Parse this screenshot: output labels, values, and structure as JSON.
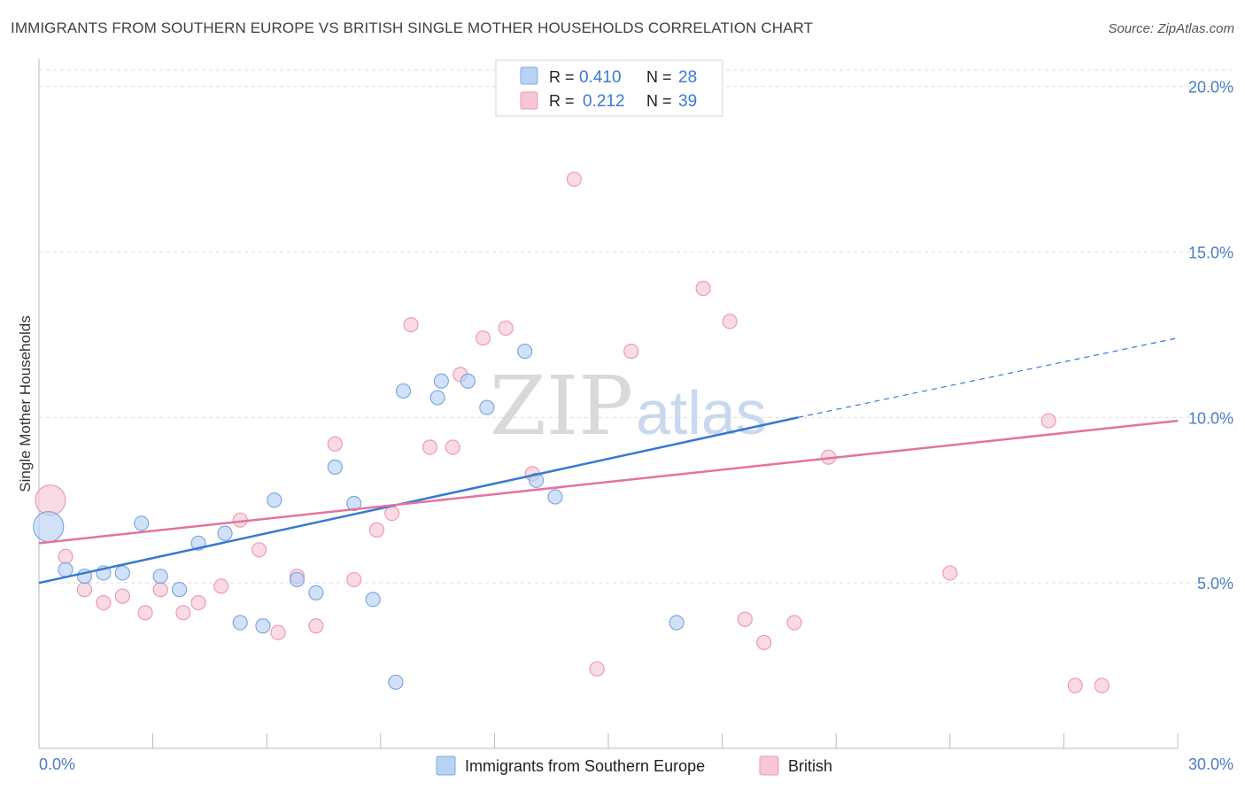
{
  "header": {
    "title": "IMMIGRANTS FROM SOUTHERN EUROPE VS BRITISH SINGLE MOTHER HOUSEHOLDS CORRELATION CHART",
    "source": "Source: ZipAtlas.com"
  },
  "watermark": {
    "part1": "ZIP",
    "part2": "atlas"
  },
  "colors": {
    "blue_fill": "#b8d3f4",
    "blue_stroke": "#7fa8de",
    "blue_line": "#3679d4",
    "pink_fill": "#f8c6d4",
    "pink_stroke": "#ec9bb4",
    "pink_line": "#e4739b",
    "tick_label": "#4a7cc7",
    "grid": "#dddddd"
  },
  "legend_top": {
    "rows": [
      {
        "r_label": "R =",
        "r_value": "0.410",
        "n_label": "N =",
        "n_value": "28"
      },
      {
        "r_label": "R =",
        "r_value": "0.212",
        "n_label": "N =",
        "n_value": "39"
      }
    ]
  },
  "chart_data": {
    "type": "scatter",
    "title": "IMMIGRANTS FROM SOUTHERN EUROPE VS BRITISH SINGLE MOTHER HOUSEHOLDS CORRELATION CHART",
    "xlabel": "",
    "ylabel": "Single Mother Households",
    "xlim": [
      0,
      30
    ],
    "ylim": [
      0,
      20.5
    ],
    "x_tick_labels": [
      "0.0%",
      "30.0%"
    ],
    "y_ticks": [
      5,
      10,
      15,
      20
    ],
    "y_tick_labels": [
      "5.0%",
      "10.0%",
      "15.0%",
      "20.0%"
    ],
    "grid": true,
    "legend_position": "bottom",
    "series": [
      {
        "name": "Immigrants from Southern Europe",
        "color": "blue",
        "r": 0.41,
        "n": 28,
        "trend": {
          "x0": 0,
          "y0": 5.0,
          "x1": 20,
          "y1": 10.0,
          "dash_to_x": 30,
          "dash_to_y": 12.4
        },
        "points": [
          {
            "x": 0.25,
            "y": 6.7,
            "big": true
          },
          {
            "x": 0.7,
            "y": 5.4
          },
          {
            "x": 1.2,
            "y": 5.2
          },
          {
            "x": 1.7,
            "y": 5.3
          },
          {
            "x": 2.2,
            "y": 5.3
          },
          {
            "x": 2.7,
            "y": 6.8
          },
          {
            "x": 3.2,
            "y": 5.2
          },
          {
            "x": 3.7,
            "y": 4.8
          },
          {
            "x": 4.2,
            "y": 6.2
          },
          {
            "x": 4.9,
            "y": 6.5
          },
          {
            "x": 5.3,
            "y": 3.8
          },
          {
            "x": 5.9,
            "y": 3.7
          },
          {
            "x": 6.2,
            "y": 7.5
          },
          {
            "x": 6.8,
            "y": 5.1
          },
          {
            "x": 7.3,
            "y": 4.7
          },
          {
            "x": 7.8,
            "y": 8.5
          },
          {
            "x": 8.3,
            "y": 7.4
          },
          {
            "x": 8.8,
            "y": 4.5
          },
          {
            "x": 9.4,
            "y": 2.0
          },
          {
            "x": 9.6,
            "y": 10.8
          },
          {
            "x": 10.5,
            "y": 10.6
          },
          {
            "x": 10.6,
            "y": 11.1
          },
          {
            "x": 11.3,
            "y": 11.1
          },
          {
            "x": 11.8,
            "y": 10.3
          },
          {
            "x": 12.8,
            "y": 12.0
          },
          {
            "x": 13.1,
            "y": 8.1
          },
          {
            "x": 13.6,
            "y": 7.6
          },
          {
            "x": 16.8,
            "y": 3.8
          }
        ]
      },
      {
        "name": "British",
        "color": "pink",
        "r": 0.212,
        "n": 39,
        "trend": {
          "x0": 0,
          "y0": 6.2,
          "x1": 30,
          "y1": 9.9
        },
        "points": [
          {
            "x": 0.3,
            "y": 7.5,
            "big": true
          },
          {
            "x": 0.7,
            "y": 5.8
          },
          {
            "x": 1.2,
            "y": 4.8
          },
          {
            "x": 1.7,
            "y": 4.4
          },
          {
            "x": 2.2,
            "y": 4.6
          },
          {
            "x": 2.8,
            "y": 4.1
          },
          {
            "x": 3.2,
            "y": 4.8
          },
          {
            "x": 3.8,
            "y": 4.1
          },
          {
            "x": 4.2,
            "y": 4.4
          },
          {
            "x": 4.8,
            "y": 4.9
          },
          {
            "x": 5.3,
            "y": 6.9
          },
          {
            "x": 5.8,
            "y": 6.0
          },
          {
            "x": 6.3,
            "y": 3.5
          },
          {
            "x": 6.8,
            "y": 5.2
          },
          {
            "x": 7.3,
            "y": 3.7
          },
          {
            "x": 7.8,
            "y": 9.2
          },
          {
            "x": 8.3,
            "y": 5.1
          },
          {
            "x": 8.9,
            "y": 6.6
          },
          {
            "x": 9.3,
            "y": 7.1
          },
          {
            "x": 9.8,
            "y": 12.8
          },
          {
            "x": 10.3,
            "y": 9.1
          },
          {
            "x": 10.9,
            "y": 9.1
          },
          {
            "x": 11.1,
            "y": 11.3
          },
          {
            "x": 11.7,
            "y": 12.4
          },
          {
            "x": 12.3,
            "y": 12.7
          },
          {
            "x": 13.0,
            "y": 8.3
          },
          {
            "x": 14.1,
            "y": 17.2
          },
          {
            "x": 14.7,
            "y": 2.4
          },
          {
            "x": 15.6,
            "y": 12.0
          },
          {
            "x": 17.5,
            "y": 13.9
          },
          {
            "x": 18.2,
            "y": 12.9
          },
          {
            "x": 18.6,
            "y": 3.9
          },
          {
            "x": 19.1,
            "y": 3.2
          },
          {
            "x": 19.9,
            "y": 3.8
          },
          {
            "x": 20.8,
            "y": 8.8
          },
          {
            "x": 24.0,
            "y": 5.3
          },
          {
            "x": 26.6,
            "y": 9.9
          },
          {
            "x": 27.3,
            "y": 1.9
          },
          {
            "x": 28.0,
            "y": 1.9
          }
        ]
      }
    ]
  }
}
